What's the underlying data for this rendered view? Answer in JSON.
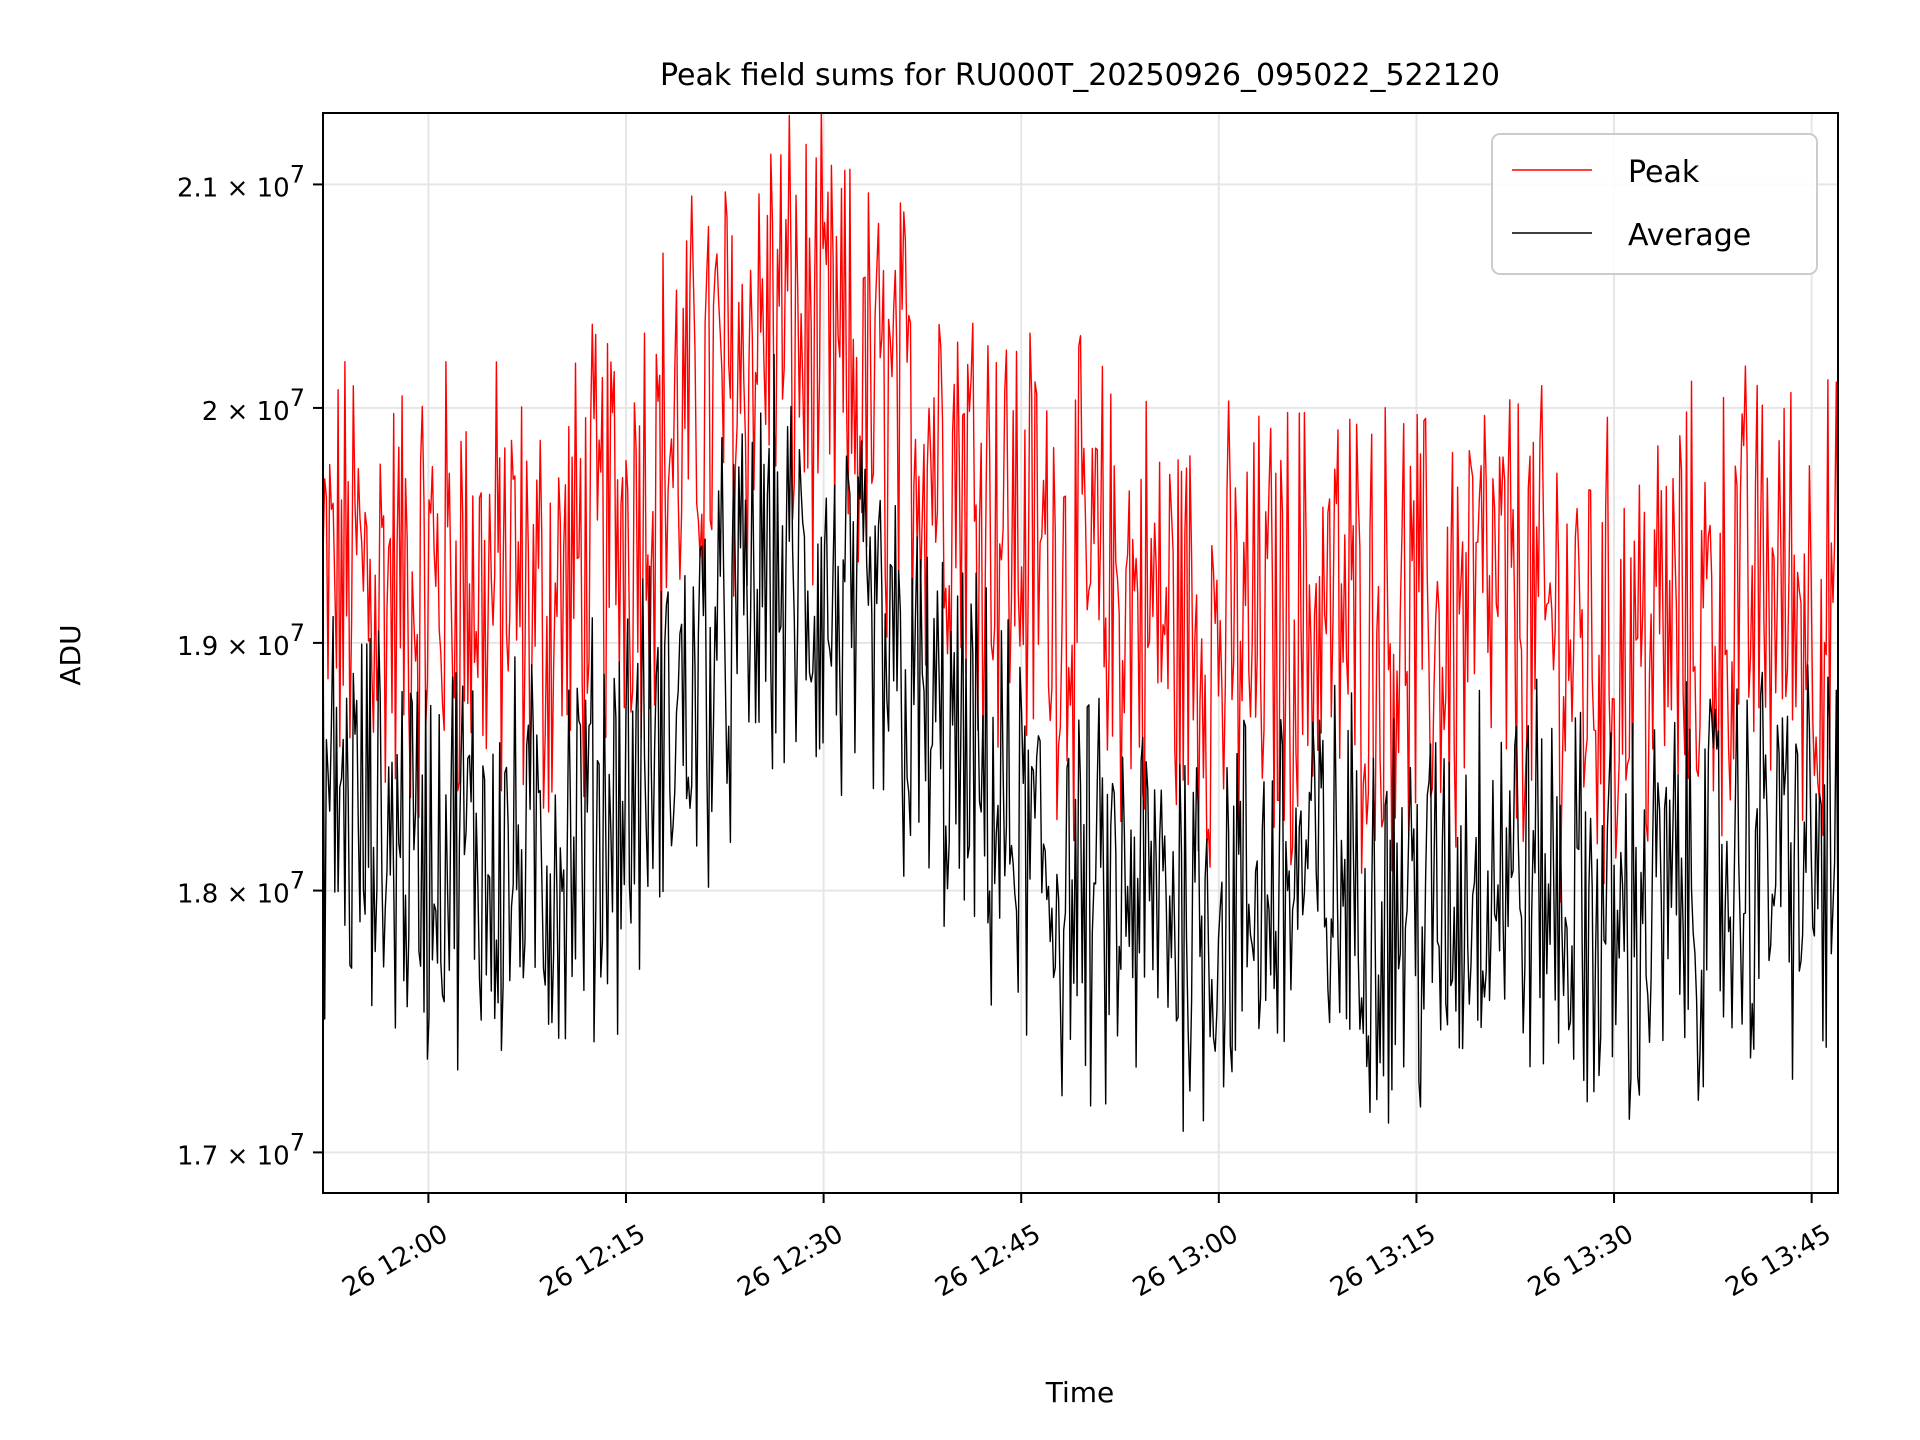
{
  "chart_data": {
    "type": "line",
    "title": "Peak field sums for RU000T_20250926_095022_522120",
    "xlabel": "Time",
    "ylabel": "ADU",
    "yscale": "log",
    "ylim": [
      16850000,
      21330000
    ],
    "xlim": [
      "2025-09-26 11:52",
      "2025-09-26 13:47"
    ],
    "grid": true,
    "legend_placement": "top-right",
    "x_ticks": [
      "26 12:00",
      "26 12:15",
      "26 12:30",
      "26 12:45",
      "26 13:00",
      "26 13:15",
      "26 13:30",
      "26 13:45"
    ],
    "y_ticks": [
      {
        "value": 17000000,
        "mantissa": "1.7",
        "exp": "7"
      },
      {
        "value": 18000000,
        "mantissa": "1.8",
        "exp": "7"
      },
      {
        "value": 19000000,
        "mantissa": "1.9",
        "exp": "7"
      },
      {
        "value": 20000000,
        "mantissa": "2",
        "exp": "7"
      },
      {
        "value": 21000000,
        "mantissa": "2.1",
        "exp": "7"
      }
    ],
    "sampling_interval": "~8 s (dense, noisy); values below are a representative subsample",
    "series": [
      {
        "name": "Peak",
        "color": "#ff0000",
        "x": [
          "2025-09-26 11:52",
          "2025-09-26 11:54",
          "2025-09-26 11:56",
          "2025-09-26 11:58",
          "2025-09-26 12:00",
          "2025-09-26 12:02",
          "2025-09-26 12:04",
          "2025-09-26 12:06",
          "2025-09-26 12:08",
          "2025-09-26 12:10",
          "2025-09-26 12:12",
          "2025-09-26 12:14",
          "2025-09-26 12:16",
          "2025-09-26 12:18",
          "2025-09-26 12:20",
          "2025-09-26 12:22",
          "2025-09-26 12:24",
          "2025-09-26 12:26",
          "2025-09-26 12:28",
          "2025-09-26 12:30",
          "2025-09-26 12:32",
          "2025-09-26 12:34",
          "2025-09-26 12:36",
          "2025-09-26 12:38",
          "2025-09-26 12:40",
          "2025-09-26 12:42",
          "2025-09-26 12:44",
          "2025-09-26 12:46",
          "2025-09-26 12:48",
          "2025-09-26 12:50",
          "2025-09-26 12:52",
          "2025-09-26 12:54",
          "2025-09-26 12:56",
          "2025-09-26 12:58",
          "2025-09-26 13:00",
          "2025-09-26 13:02",
          "2025-09-26 13:04",
          "2025-09-26 13:06",
          "2025-09-26 13:08",
          "2025-09-26 13:10",
          "2025-09-26 13:12",
          "2025-09-26 13:14",
          "2025-09-26 13:16",
          "2025-09-26 13:18",
          "2025-09-26 13:20",
          "2025-09-26 13:22",
          "2025-09-26 13:24",
          "2025-09-26 13:26",
          "2025-09-26 13:28",
          "2025-09-26 13:30",
          "2025-09-26 13:32",
          "2025-09-26 13:34",
          "2025-09-26 13:36",
          "2025-09-26 13:38",
          "2025-09-26 13:40",
          "2025-09-26 13:42",
          "2025-09-26 13:44",
          "2025-09-26 13:46"
        ],
        "values": [
          19200000,
          19300000,
          19250000,
          19200000,
          19250000,
          19300000,
          19200000,
          19250000,
          19100000,
          19200000,
          19350000,
          19500000,
          19650000,
          19800000,
          19950000,
          20100000,
          20200000,
          20400000,
          20300000,
          20200000,
          20100000,
          20000000,
          19950000,
          19900000,
          19800000,
          19700000,
          19500000,
          19400000,
          19300000,
          19250000,
          19200000,
          19150000,
          19100000,
          19050000,
          19000000,
          19000000,
          19050000,
          19100000,
          19150000,
          19100000,
          19050000,
          19100000,
          19000000,
          19050000,
          19200000,
          19150000,
          19100000,
          19050000,
          18950000,
          18950000,
          19000000,
          19050000,
          19100000,
          19150000,
          19200000,
          19250000,
          19200000,
          19150000
        ]
      },
      {
        "name": "Average",
        "color": "#000000",
        "x": [
          "2025-09-26 11:52",
          "2025-09-26 11:54",
          "2025-09-26 11:56",
          "2025-09-26 11:58",
          "2025-09-26 12:00",
          "2025-09-26 12:02",
          "2025-09-26 12:04",
          "2025-09-26 12:06",
          "2025-09-26 12:08",
          "2025-09-26 12:10",
          "2025-09-26 12:12",
          "2025-09-26 12:14",
          "2025-09-26 12:16",
          "2025-09-26 12:18",
          "2025-09-26 12:20",
          "2025-09-26 12:22",
          "2025-09-26 12:24",
          "2025-09-26 12:26",
          "2025-09-26 12:28",
          "2025-09-26 12:30",
          "2025-09-26 12:32",
          "2025-09-26 12:34",
          "2025-09-26 12:36",
          "2025-09-26 12:38",
          "2025-09-26 12:40",
          "2025-09-26 12:42",
          "2025-09-26 12:44",
          "2025-09-26 12:46",
          "2025-09-26 12:48",
          "2025-09-26 12:50",
          "2025-09-26 12:52",
          "2025-09-26 12:54",
          "2025-09-26 12:56",
          "2025-09-26 12:58",
          "2025-09-26 13:00",
          "2025-09-26 13:02",
          "2025-09-26 13:04",
          "2025-09-26 13:06",
          "2025-09-26 13:08",
          "2025-09-26 13:10",
          "2025-09-26 13:12",
          "2025-09-26 13:14",
          "2025-09-26 13:16",
          "2025-09-26 13:18",
          "2025-09-26 13:20",
          "2025-09-26 13:22",
          "2025-09-26 13:24",
          "2025-09-26 13:26",
          "2025-09-26 13:28",
          "2025-09-26 13:30",
          "2025-09-26 13:32",
          "2025-09-26 13:34",
          "2025-09-26 13:36",
          "2025-09-26 13:38",
          "2025-09-26 13:40",
          "2025-09-26 13:42",
          "2025-09-26 13:44",
          "2025-09-26 13:46"
        ],
        "values": [
          18400000,
          18300000,
          18250000,
          18200000,
          18150000,
          18200000,
          18150000,
          18100000,
          18100000,
          18150000,
          18250000,
          18350000,
          18450000,
          18600000,
          18800000,
          18950000,
          19100000,
          19300000,
          19200000,
          19150000,
          19050000,
          18950000,
          18800000,
          18650000,
          18500000,
          18400000,
          18250000,
          18100000,
          18000000,
          17950000,
          17900000,
          17950000,
          17950000,
          17950000,
          17900000,
          17950000,
          18000000,
          18050000,
          18050000,
          18000000,
          17950000,
          17950000,
          17900000,
          17950000,
          18150000,
          18100000,
          18050000,
          17950000,
          17900000,
          17850000,
          17900000,
          17950000,
          18000000,
          18050000,
          18100000,
          18150000,
          18100000,
          18100000
        ]
      }
    ]
  }
}
